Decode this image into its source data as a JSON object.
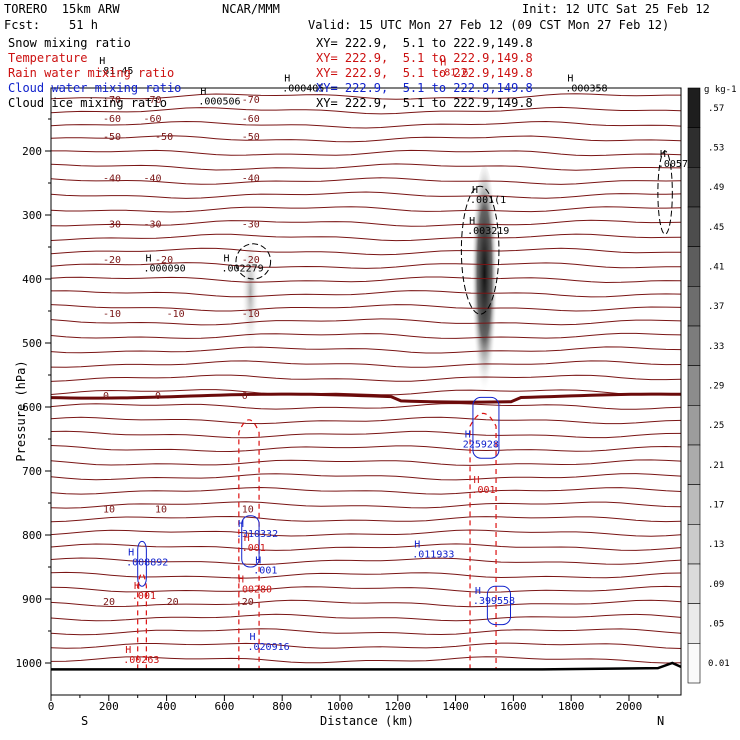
{
  "header": {
    "model": "TORERO  15km ARW",
    "center": "NCAR/MMM",
    "init": "Init: 12 UTC Sat 25 Feb 12",
    "fcst": "Fcst:    51 h",
    "valid": "Valid: 15 UTC Mon 27 Feb 12 (09 CST Mon 27 Feb 12)"
  },
  "legend": [
    {
      "name": "Snow mixing ratio",
      "xy": "XY= 222.9,  5.1 to 222.9,149.8",
      "color": "#000000"
    },
    {
      "name": "Temperature",
      "xy": "XY= 222.9,  5.1 to 222.9,149.8",
      "color": "#cc1111"
    },
    {
      "name": "Rain water mixing ratio",
      "xy": "XY= 222.9,  5.1 to 222.9,149.8",
      "color": "#cc1111"
    },
    {
      "name": "Cloud water mixing ratio",
      "xy": "XY= 222.9,  5.1 to 222.9,149.8",
      "color": "#1122cc"
    },
    {
      "name": "Cloud ice mixing ratio",
      "xy": "XY= 222.9,  5.1 to 222.9,149.8",
      "color": "#000000"
    }
  ],
  "chart_data": {
    "type": "cross-section",
    "xlabel": "Distance (km)",
    "ylabel": "Pressure (hPa)",
    "x_ticks": [
      "0",
      "200",
      "400",
      "600",
      "800",
      "1000",
      "1200",
      "1400",
      "1600",
      "1800",
      "2000"
    ],
    "y_ticks": [
      "200",
      "300",
      "400",
      "500",
      "600",
      "700",
      "800",
      "900",
      "1000"
    ],
    "xlim": [
      0,
      2180
    ],
    "ylim": [
      1050,
      100
    ],
    "endpoints": {
      "left": "S",
      "right": "N"
    },
    "colorbar_unit": "g kg-1",
    "colorbar_values": [
      "0.01",
      ".05",
      ".09",
      ".13",
      ".17",
      ".21",
      ".25",
      ".29",
      ".33",
      ".37",
      ".41",
      ".45",
      ".49",
      ".53",
      ".57"
    ],
    "isotherms": [
      {
        "label": "-70",
        "p": 120
      },
      {
        "label": "-60",
        "p": 150
      },
      {
        "label": "-50",
        "p": 178
      },
      {
        "label": "-40",
        "p": 243
      },
      {
        "label": "-30",
        "p": 315
      },
      {
        "label": "-20",
        "p": 370
      },
      {
        "label": "-10",
        "p": 455
      },
      {
        "label": "0",
        "p": 583
      },
      {
        "label": "10",
        "p": 760
      },
      {
        "label": "20",
        "p": 905
      }
    ],
    "annotations": [
      {
        "text": ".000506",
        "km": 510,
        "p": 127,
        "color": "#000000"
      },
      {
        "text": ".000405",
        "km": 800,
        "p": 107,
        "color": "#000000"
      },
      {
        "text": ".000358",
        "km": 1780,
        "p": 107,
        "color": "#000000"
      },
      {
        "text": ".005797",
        "km": 2100,
        "p": 225,
        "color": "#000000"
      },
      {
        "text": ".001(1",
        "km": 1450,
        "p": 281,
        "color": "#000000"
      },
      {
        "text": ".003219",
        "km": 1440,
        "p": 330,
        "color": "#000000"
      },
      {
        "text": ".000090",
        "km": 320,
        "p": 388,
        "color": "#000000"
      },
      {
        "text": ".002279",
        "km": 590,
        "p": 388,
        "color": "#000000"
      },
      {
        "text": "-81.45",
        "km": 160,
        "p": 80,
        "color": "#000000"
      },
      {
        "text": "-81.6",
        "km": 1340,
        "p": 82,
        "color": "#cc1111"
      },
      {
        "text": "225928",
        "km": 1425,
        "p": 663,
        "color": "#1122cc"
      },
      {
        "text": ".001",
        "km": 1455,
        "p": 734,
        "color": "#cc1111"
      },
      {
        "text": ".310332",
        "km": 640,
        "p": 803,
        "color": "#1122cc"
      },
      {
        "text": ".001",
        "km": 660,
        "p": 825,
        "color": "#cc1111"
      },
      {
        "text": ".001",
        "km": 700,
        "p": 860,
        "color": "#1122cc"
      },
      {
        "text": ".00280",
        "km": 640,
        "p": 890,
        "color": "#cc1111"
      },
      {
        "text": ".011933",
        "km": 1250,
        "p": 835,
        "color": "#1122cc"
      },
      {
        "text": ".008892",
        "km": 260,
        "p": 848,
        "color": "#1122cc"
      },
      {
        "text": ".001",
        "km": 280,
        "p": 900,
        "color": "#cc1111"
      },
      {
        "text": ".399558",
        "km": 1460,
        "p": 908,
        "color": "#1122cc"
      },
      {
        "text": ".020916",
        "km": 680,
        "p": 980,
        "color": "#1122cc"
      },
      {
        "text": ".00263",
        "km": 250,
        "p": 1000,
        "color": "#cc1111"
      }
    ]
  }
}
